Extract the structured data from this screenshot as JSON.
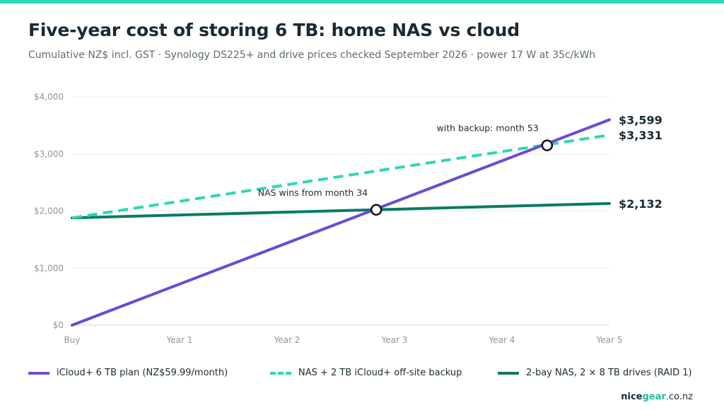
{
  "title": "Five-year cost of storing 6 TB: home NAS vs cloud",
  "subtitle": "Cumulative NZ$ incl. GST · Synology DS225+ and drive prices checked September 2026 · power 17 W at 35c/kWh",
  "brand": {
    "base": "nice",
    "accent": "gear",
    "tld": ".co.nz"
  },
  "colors": {
    "accent_bar": "#2fd6b5",
    "icloud": "#6c4ad6",
    "nas_backup": "#2fd6b5",
    "nas": "#0b7a64"
  },
  "chart_data": {
    "type": "line",
    "title": "Five-year cost of storing 6 TB: home NAS vs cloud",
    "xlabel": "",
    "ylabel": "",
    "x_unit": "years",
    "x_ticks": [
      "Buy",
      "Year 1",
      "Year 2",
      "Year 3",
      "Year 4",
      "Year 5"
    ],
    "xlim": [
      0,
      5
    ],
    "y_ticks": [
      "$0",
      "$1,000",
      "$2,000",
      "$3,000",
      "$4,000"
    ],
    "ylim": [
      0,
      4000
    ],
    "grid": true,
    "legend_position": "bottom",
    "series": [
      {
        "name": "iCloud+ 6 TB plan (NZ$59.99/month)",
        "x": [
          0,
          5
        ],
        "values": [
          0,
          3599
        ],
        "style": "solid",
        "color": "#6c4ad6",
        "end_label": "$3,599"
      },
      {
        "name": "NAS + 2 TB iCloud+ off-site backup",
        "x": [
          0,
          5
        ],
        "values": [
          1880,
          3331
        ],
        "style": "dashed",
        "color": "#2fd6b5",
        "end_label": "$3,331"
      },
      {
        "name": "2-bay NAS, 2 × 8 TB drives (RAID 1)",
        "x": [
          0,
          5
        ],
        "values": [
          1880,
          2132
        ],
        "style": "solid",
        "color": "#0b7a64",
        "end_label": "$2,132"
      }
    ],
    "annotations": [
      {
        "text": "NAS wins from month 34",
        "x": 2.83,
        "y": 2021
      },
      {
        "text": "with backup: month 53",
        "x": 4.42,
        "y": 3150
      }
    ]
  }
}
